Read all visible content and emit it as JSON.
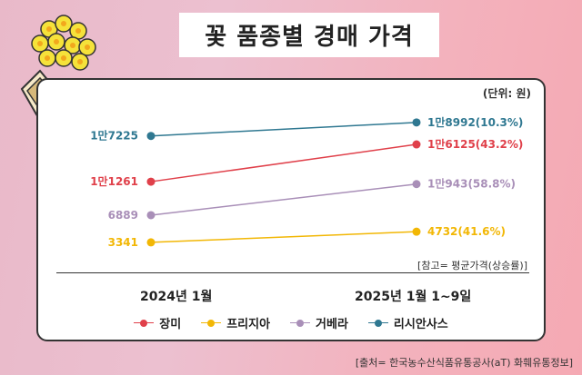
{
  "title": "꽃 품종별 경매 가격",
  "unit_label": "(단위: 원)",
  "note": "[참고= 평균가격(상승률)]",
  "source": "[출처= 한국농수산식품유통공사(aT) 화훼유통정보]",
  "colors": {
    "rose": "#e0404a",
    "freesia": "#f2b705",
    "gerbera": "#a98fb8",
    "lisianthus": "#2f7891"
  },
  "chart_data": {
    "type": "line",
    "categories": [
      "2024년 1월",
      "2025년 1월 1~9일"
    ],
    "series": [
      {
        "name": "장미",
        "color": "#e0404a",
        "values": [
          11261,
          16125
        ],
        "labels": [
          "1만1261",
          "1만6125(43.2%)"
        ]
      },
      {
        "name": "프리지아",
        "color": "#f2b705",
        "values": [
          3341,
          4732
        ],
        "labels": [
          "3341",
          "4732(41.6%)"
        ]
      },
      {
        "name": "거베라",
        "color": "#a98fb8",
        "values": [
          6889,
          10943
        ],
        "labels": [
          "6889",
          "1만943(58.8%)"
        ]
      },
      {
        "name": "리시안사스",
        "color": "#2f7891",
        "values": [
          17225,
          18992
        ],
        "labels": [
          "1만7225",
          "1만8992(10.3%)"
        ]
      }
    ],
    "ylabel": "원",
    "xlabel": "",
    "grid": false,
    "legend": "bottom"
  }
}
